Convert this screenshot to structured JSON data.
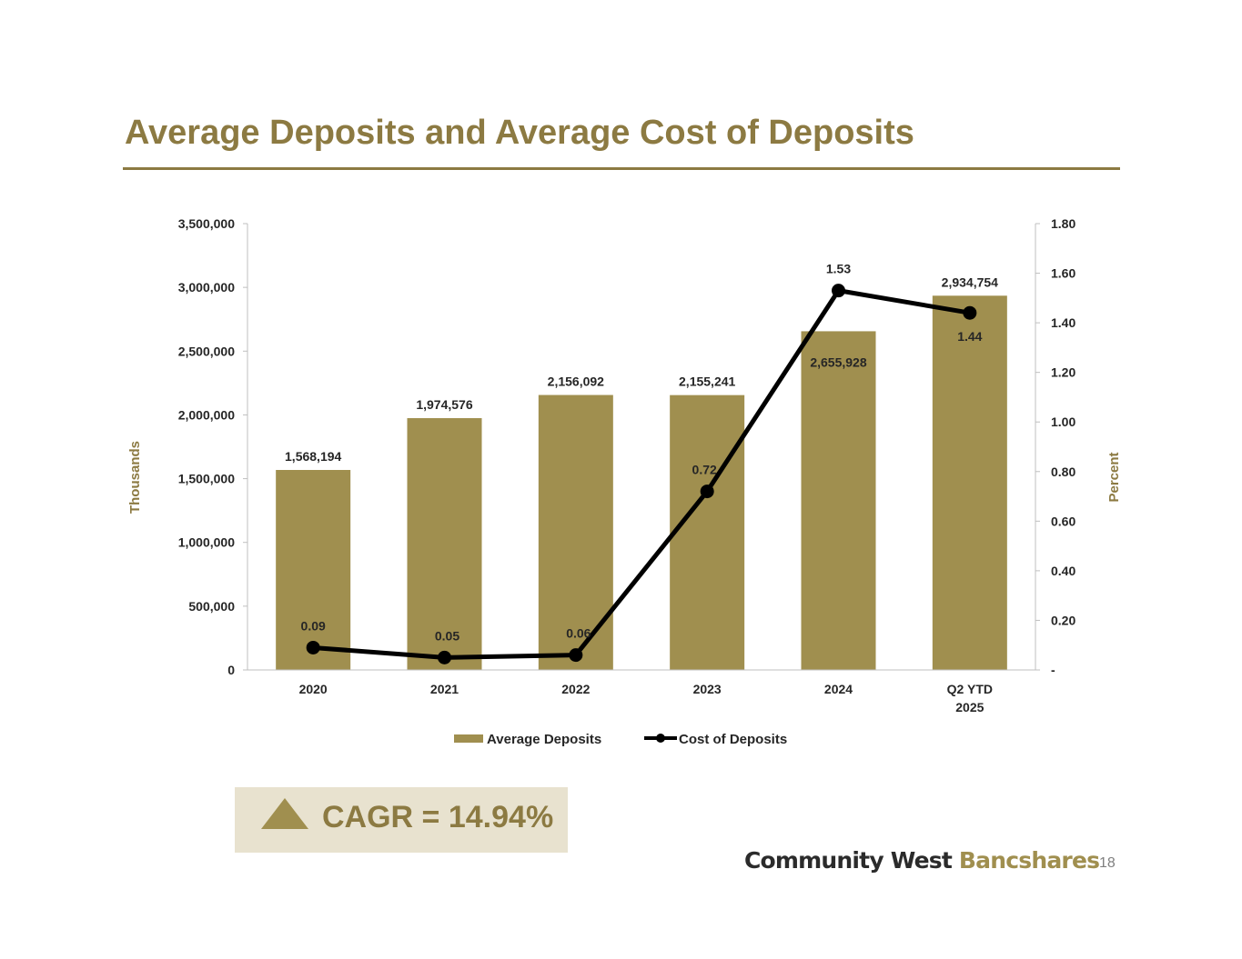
{
  "slide": {
    "title": "Average Deposits and Average Cost of Deposits",
    "page_number": "18",
    "accent_color": "#8c7a42"
  },
  "cagr": {
    "label": "CAGR = 14.94%",
    "icon": "triangle-up-icon"
  },
  "logo": {
    "part1": "Community West",
    "part2": " Bancshares"
  },
  "chart_data": {
    "type": "bar",
    "categories": [
      "2020",
      "2021",
      "2022",
      "2023",
      "2024",
      "Q2 YTD 2025"
    ],
    "ylabel": "Thousands",
    "y2label": "Percent",
    "ylim": [
      0,
      3500000
    ],
    "y2lim": [
      0,
      1.8
    ],
    "y_ticks": [
      "0",
      "500,000",
      "1,000,000",
      "1,500,000",
      "2,000,000",
      "2,500,000",
      "3,000,000",
      "3,500,000"
    ],
    "y2_ticks": [
      "-",
      "0.20",
      "0.40",
      "0.60",
      "0.80",
      "1.00",
      "1.20",
      "1.40",
      "1.60",
      "1.80"
    ],
    "grid": false,
    "legend_position": "bottom",
    "series": [
      {
        "name": "Average Deposits",
        "type": "bar",
        "axis": "left",
        "color": "#a08f4f",
        "values": [
          1568194,
          1974576,
          2156092,
          2155241,
          2655928,
          2934754
        ],
        "labels": [
          "1,568,194",
          "1,974,576",
          "2,156,092",
          "2,155,241",
          "2,655,928",
          "2,934,754"
        ]
      },
      {
        "name": "Cost of Deposits",
        "type": "line",
        "axis": "right",
        "color": "#000000",
        "values": [
          0.09,
          0.05,
          0.06,
          0.72,
          1.53,
          1.44
        ],
        "labels": [
          "0.09",
          "0.05",
          "0.06",
          "0.72",
          "1.53",
          "1.44"
        ]
      }
    ]
  }
}
